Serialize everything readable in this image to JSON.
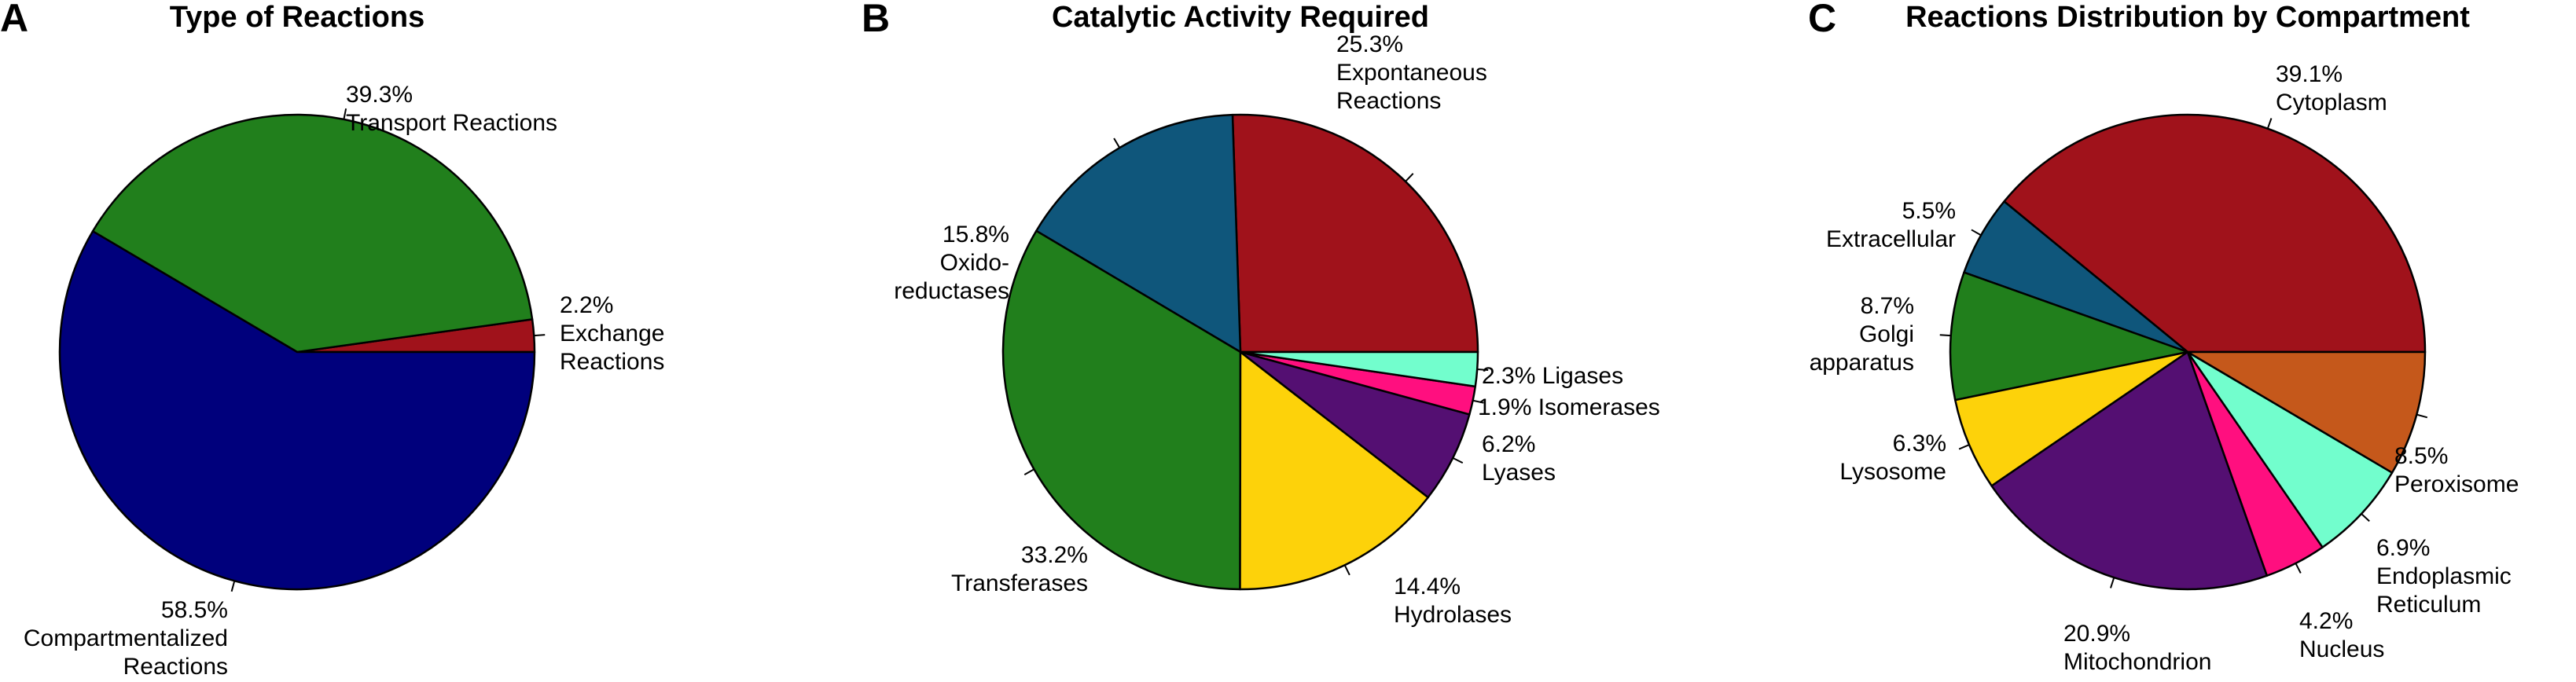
{
  "chart_data": [
    {
      "type": "pie",
      "panel": "A",
      "title": "Type of Reactions",
      "slices": [
        {
          "label": [
            "Exchange",
            "Reactions"
          ],
          "percent_text": "2.2%",
          "value": 2.2,
          "color": "#A0121B"
        },
        {
          "label": [
            "Transport Reactions"
          ],
          "percent_text": "39.3%",
          "value": 39.3,
          "color": "#217F1C"
        },
        {
          "label": [
            "Compartmentalized",
            "Reactions"
          ],
          "percent_text": "58.5%",
          "value": 58.5,
          "color": "#00007C"
        }
      ]
    },
    {
      "type": "pie",
      "panel": "B",
      "title": "Catalytic Activity Required",
      "slices": [
        {
          "label": [
            "Expontaneous",
            "Reactions"
          ],
          "percent_text": "25.3%",
          "value": 25.3,
          "color": "#A0121B"
        },
        {
          "label": [
            "Oxido-",
            "reductases"
          ],
          "percent_text": "15.8%",
          "value": 15.8,
          "color": "#0F567B"
        },
        {
          "label": [
            "Transferases"
          ],
          "percent_text": "33.2%",
          "value": 33.2,
          "color": "#217F1C"
        },
        {
          "label": [
            "Hydrolases"
          ],
          "percent_text": "14.4%",
          "value": 14.4,
          "color": "#FDD20A"
        },
        {
          "label": [
            "Lyases"
          ],
          "percent_text": "6.2%",
          "value": 6.2,
          "color": "#540F72"
        },
        {
          "label": [
            "Isomerases"
          ],
          "percent_text": "1.9%",
          "value": 1.9,
          "color": "#FF0F7F"
        },
        {
          "label": [
            "Ligases"
          ],
          "percent_text": "2.3%",
          "value": 2.3,
          "color": "#72FECD"
        }
      ]
    },
    {
      "type": "pie",
      "panel": "C",
      "title": "Reactions Distribution by Compartment",
      "slices": [
        {
          "label": [
            "Cytoplasm"
          ],
          "percent_text": "39.1%",
          "value": 39.1,
          "color": "#A0121B"
        },
        {
          "label": [
            "Extracellular"
          ],
          "percent_text": "5.5%",
          "value": 5.5,
          "color": "#0F567B"
        },
        {
          "label": [
            "Golgi",
            "apparatus"
          ],
          "percent_text": "8.7%",
          "value": 8.7,
          "color": "#217F1C"
        },
        {
          "label": [
            "Lysosome"
          ],
          "percent_text": "6.3%",
          "value": 6.3,
          "color": "#FDD20A"
        },
        {
          "label": [
            "Mitochondrion"
          ],
          "percent_text": "20.9%",
          "value": 20.9,
          "color": "#540F72"
        },
        {
          "label": [
            "Nucleus"
          ],
          "percent_text": "4.2%",
          "value": 4.2,
          "color": "#FF0F7F"
        },
        {
          "label": [
            "Endoplasmic",
            "Reticulum"
          ],
          "percent_text": "6.9%",
          "value": 6.9,
          "color": "#72FECD"
        },
        {
          "label": [
            "Peroxisome"
          ],
          "percent_text": "8.5%",
          "value": 8.5,
          "color": "#C5581B"
        }
      ]
    }
  ]
}
